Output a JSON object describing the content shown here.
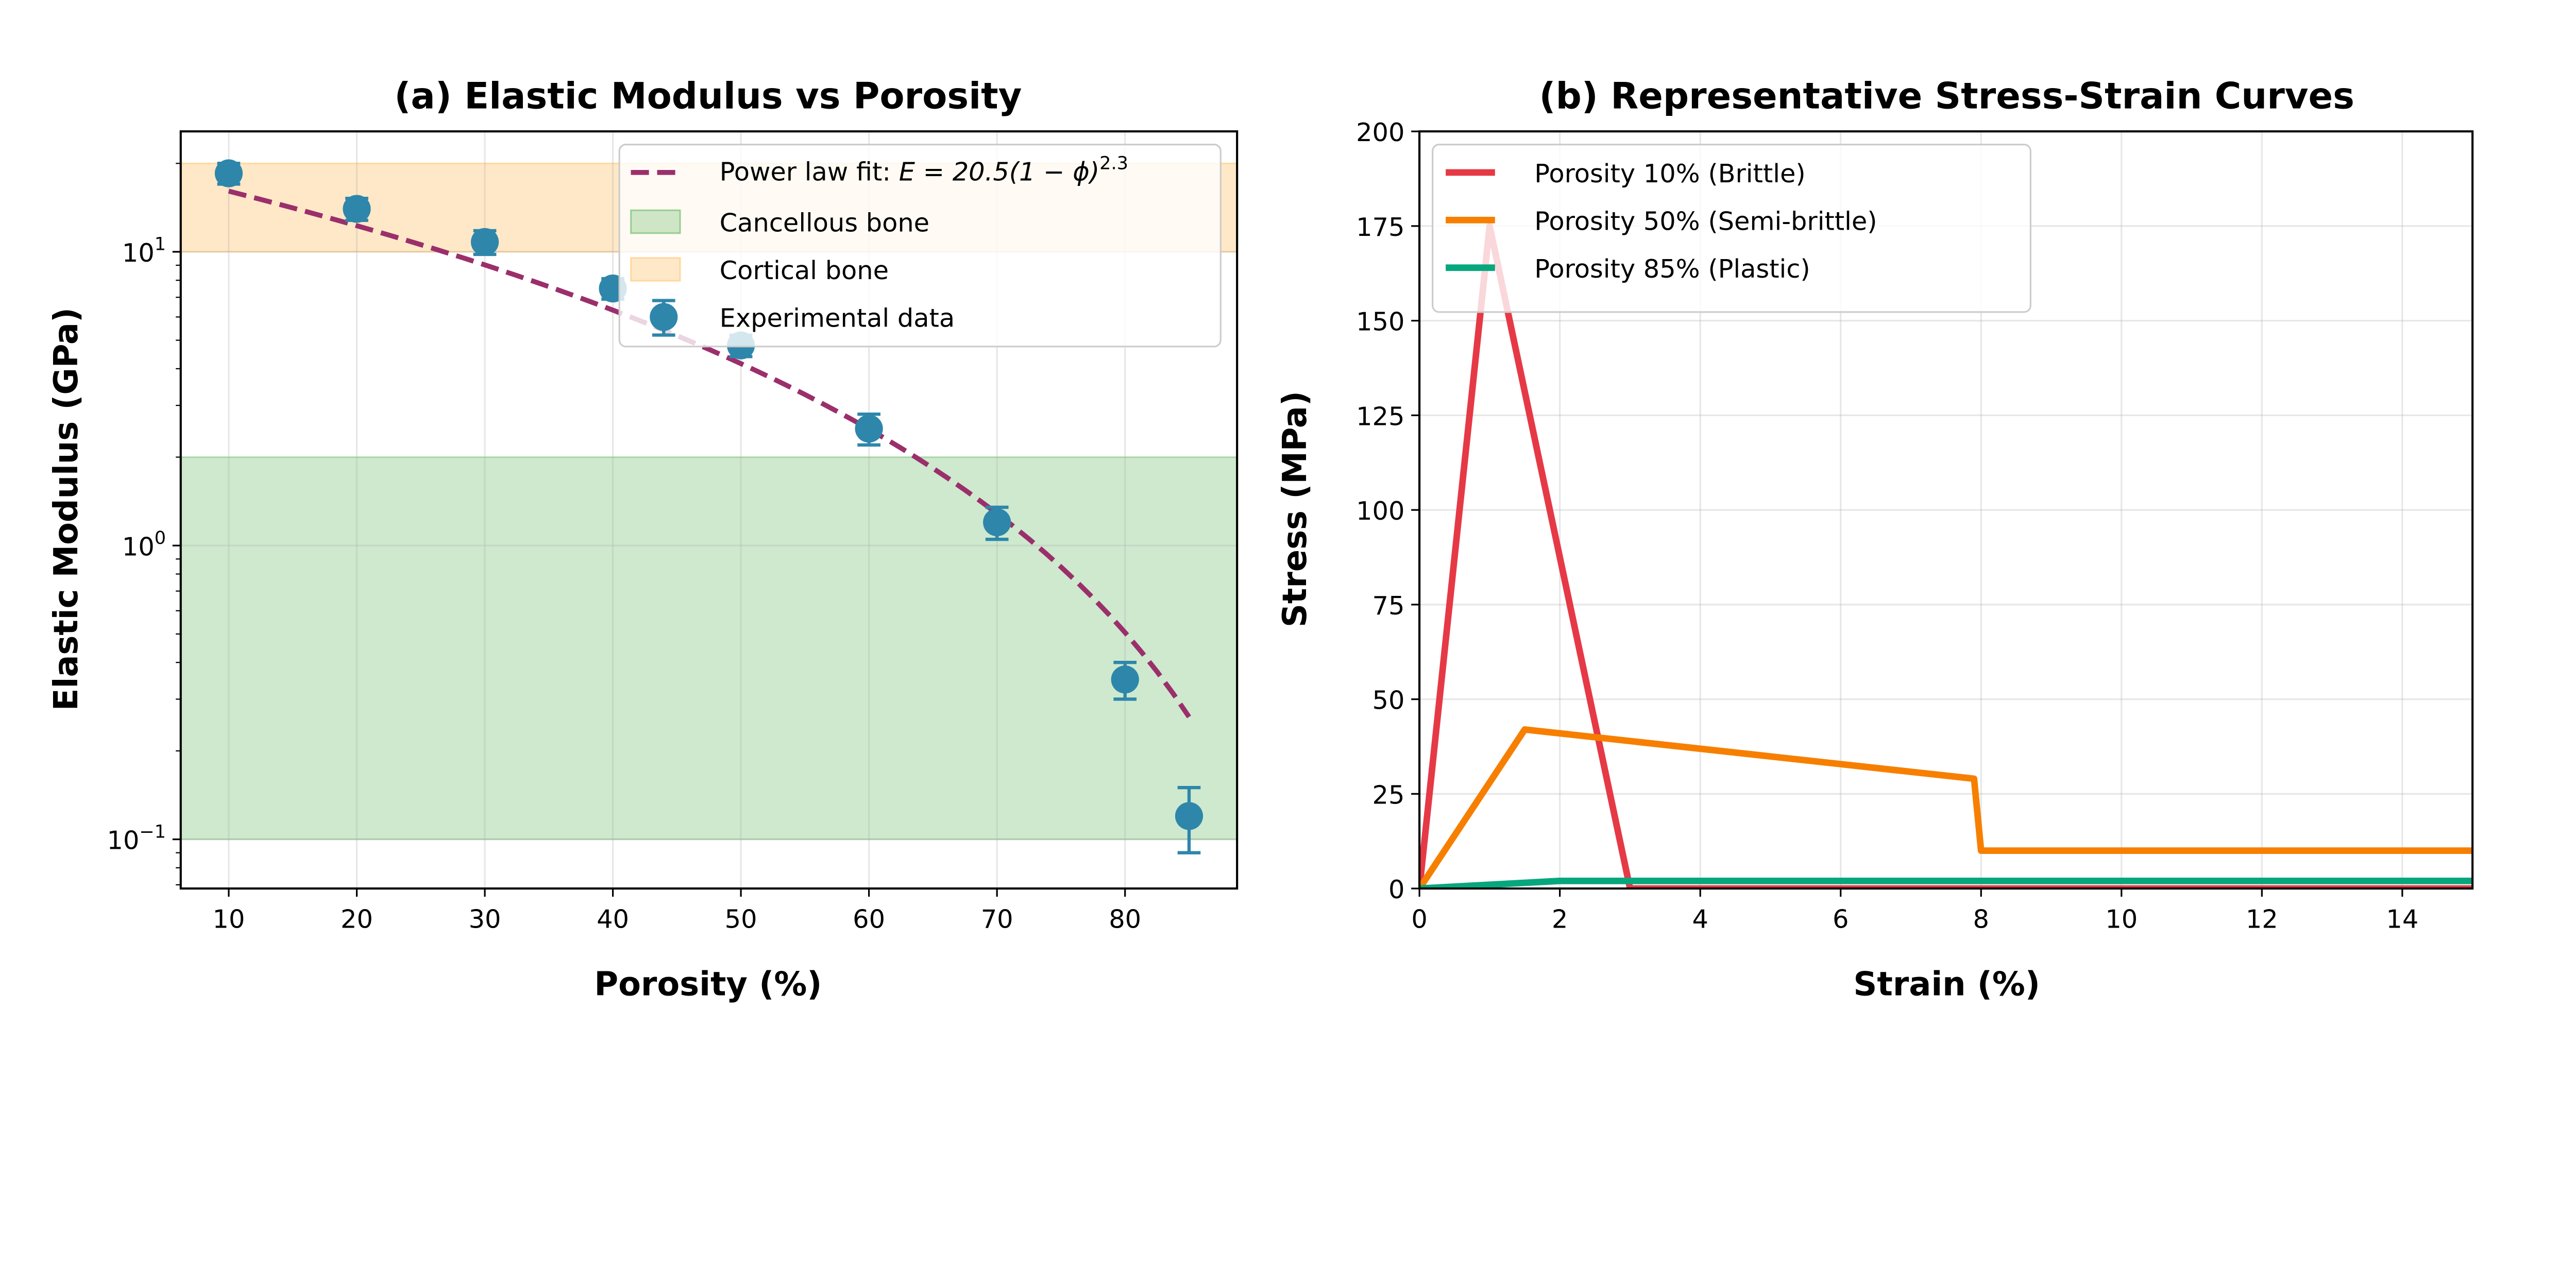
{
  "chart_data": [
    {
      "type": "scatter",
      "title": "(a) Elastic Modulus vs Porosity",
      "xlabel": "Porosity (%)",
      "ylabel": "Elastic Modulus (GPa)",
      "xlim": [
        6.25,
        88.75
      ],
      "ylim": [
        0.068,
        25.7
      ],
      "yscale": "log",
      "grid": true,
      "legend_position": "top-right",
      "xticks": [
        10,
        20,
        30,
        40,
        50,
        60,
        70,
        80
      ],
      "yticks": [
        {
          "value": 0.1,
          "base": "10",
          "exp": "−1"
        },
        {
          "value": 1,
          "base": "10",
          "exp": "0"
        },
        {
          "value": 10,
          "base": "10",
          "exp": "1"
        }
      ],
      "bands": [
        {
          "name": "Cancellous bone",
          "range": [
            0.1,
            2
          ],
          "color": "#2ca02c"
        },
        {
          "name": "Cortical bone",
          "range": [
            10,
            20
          ],
          "color": "#ffb347"
        }
      ],
      "fit": {
        "name_prefix": "Power law fit: ",
        "name_math": "E = 20.5(1 − ϕ)",
        "name_exp": "2.3",
        "a": 20.5,
        "b": 2.3,
        "x_range": [
          10,
          85
        ],
        "color": "#9b2f6b"
      },
      "series": [
        {
          "name": "Experimental data",
          "color": "#2e86ab",
          "x": [
            10,
            20,
            30,
            40,
            50,
            60,
            70,
            80,
            85
          ],
          "y": [
            18.5,
            14,
            10.8,
            7.5,
            4.8,
            2.5,
            1.2,
            0.35,
            0.12
          ],
          "err": [
            1.5,
            1.2,
            1.0,
            0.6,
            0.4,
            0.3,
            0.15,
            0.05,
            0.03
          ]
        }
      ]
    },
    {
      "type": "line",
      "title": "(b) Representative Stress-Strain Curves",
      "xlabel": "Strain (%)",
      "ylabel": "Stress (MPa)",
      "xlim": [
        0,
        15
      ],
      "ylim": [
        0,
        200
      ],
      "grid": true,
      "legend_position": "top-left",
      "xticks": [
        0,
        2,
        4,
        6,
        8,
        10,
        12,
        14
      ],
      "yticks": [
        0,
        25,
        50,
        75,
        100,
        125,
        150,
        175,
        200
      ],
      "series": [
        {
          "name": "Porosity 10% (Brittle)",
          "color": "#e63946",
          "x": [
            0,
            1,
            3,
            15
          ],
          "y": [
            0,
            175,
            0,
            0
          ]
        },
        {
          "name": "Porosity 50% (Semi-brittle)",
          "color": "#f77f00",
          "x": [
            0,
            1.5,
            7.9,
            8,
            15
          ],
          "y": [
            0,
            42,
            29,
            10,
            10
          ]
        },
        {
          "name": "Porosity 85% (Plastic)",
          "color": "#06a77d",
          "x": [
            0,
            2,
            15
          ],
          "y": [
            0,
            2,
            2
          ]
        }
      ]
    }
  ]
}
